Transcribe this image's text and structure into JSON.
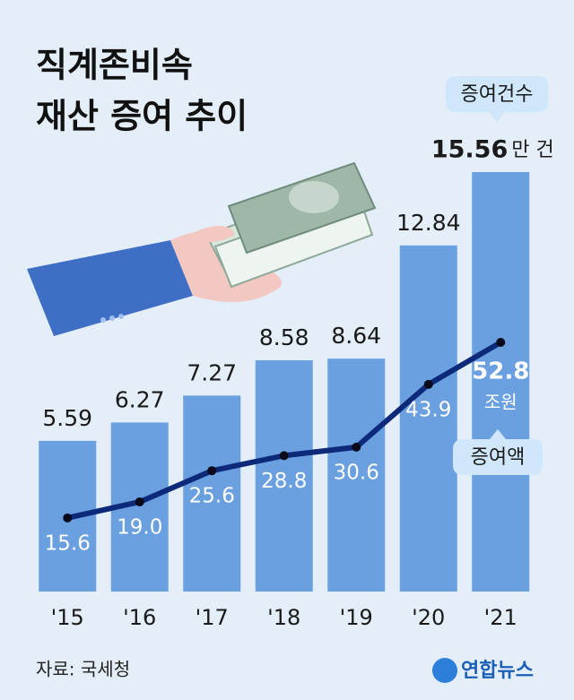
{
  "chart_data": {
    "type": "bar",
    "title": [
      "직계존비속",
      "재산 증여 추이"
    ],
    "categories": [
      "'15",
      "'16",
      "'17",
      "'18",
      "'19",
      "'20",
      "'21"
    ],
    "series": [
      {
        "name": "증여건수",
        "color": "#6a9fe0",
        "values": [
          5.59,
          6.27,
          7.27,
          8.58,
          8.64,
          12.84,
          15.56
        ],
        "unit": "만 건"
      },
      {
        "name": "증여액",
        "type": "line",
        "axis": "y2",
        "color": "#0d2a7a",
        "values": [
          15.6,
          19.0,
          25.6,
          28.8,
          30.6,
          43.9,
          52.8
        ],
        "value_labels": [
          "15.6",
          "19.0",
          "25.6",
          "28.8",
          "30.6",
          "43.9",
          "52.8"
        ],
        "unit": "조원"
      }
    ],
    "source": "자료: 국세청"
  },
  "logo": "연합뉴스"
}
